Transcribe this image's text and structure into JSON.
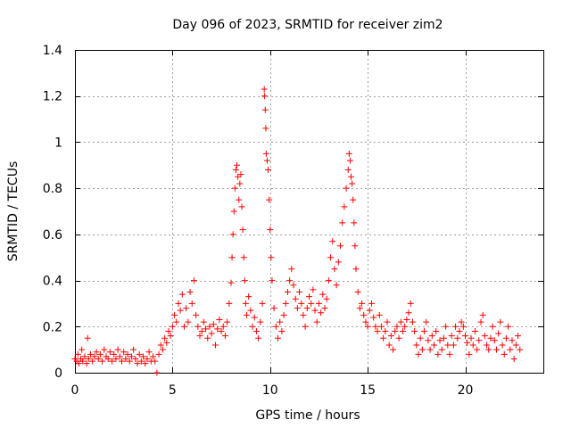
{
  "chart_data": {
    "type": "scatter",
    "title": "Day 096 of 2023, SRMTID for receiver zim2",
    "xlabel": "GPS time / hours",
    "ylabel": "SRMTID / TECUs",
    "xlim": [
      0,
      24
    ],
    "ylim": [
      0,
      1.4
    ],
    "xticks": [
      0,
      5,
      10,
      15,
      20
    ],
    "xtick_labels": [
      "0",
      "5",
      "10",
      "15",
      "20"
    ],
    "yticks": [
      0,
      0.2,
      0.4,
      0.6,
      0.8,
      1.0,
      1.2,
      1.4
    ],
    "ytick_labels": [
      "0",
      "0.2",
      "0.4",
      "0.6",
      "0.8",
      "1",
      "1.2",
      "1.4"
    ],
    "grid": true,
    "marker": "plus",
    "color": "#ff0000",
    "series": [
      {
        "name": "SRMTID",
        "points": [
          [
            0.0,
            0.06
          ],
          [
            0.1,
            0.05
          ],
          [
            0.15,
            0.08
          ],
          [
            0.2,
            0.04
          ],
          [
            0.3,
            0.06
          ],
          [
            0.35,
            0.1
          ],
          [
            0.4,
            0.05
          ],
          [
            0.5,
            0.07
          ],
          [
            0.6,
            0.04
          ],
          [
            0.65,
            0.15
          ],
          [
            0.7,
            0.06
          ],
          [
            0.8,
            0.08
          ],
          [
            0.9,
            0.05
          ],
          [
            1.0,
            0.07
          ],
          [
            1.1,
            0.09
          ],
          [
            1.2,
            0.06
          ],
          [
            1.3,
            0.08
          ],
          [
            1.4,
            0.05
          ],
          [
            1.5,
            0.1
          ],
          [
            1.6,
            0.07
          ],
          [
            1.7,
            0.06
          ],
          [
            1.8,
            0.09
          ],
          [
            1.9,
            0.05
          ],
          [
            2.0,
            0.08
          ],
          [
            2.1,
            0.06
          ],
          [
            2.2,
            0.1
          ],
          [
            2.3,
            0.07
          ],
          [
            2.4,
            0.05
          ],
          [
            2.5,
            0.09
          ],
          [
            2.6,
            0.06
          ],
          [
            2.7,
            0.08
          ],
          [
            2.8,
            0.05
          ],
          [
            2.9,
            0.07
          ],
          [
            3.0,
            0.1
          ],
          [
            3.1,
            0.06
          ],
          [
            3.2,
            0.04
          ],
          [
            3.3,
            0.08
          ],
          [
            3.4,
            0.05
          ],
          [
            3.5,
            0.07
          ],
          [
            3.6,
            0.04
          ],
          [
            3.7,
            0.06
          ],
          [
            3.8,
            0.09
          ],
          [
            3.9,
            0.05
          ],
          [
            4.0,
            0.07
          ],
          [
            4.1,
            0.05
          ],
          [
            4.2,
            0.0
          ],
          [
            4.3,
            0.08
          ],
          [
            4.4,
            0.12
          ],
          [
            4.5,
            0.1
          ],
          [
            4.6,
            0.15
          ],
          [
            4.7,
            0.13
          ],
          [
            4.8,
            0.18
          ],
          [
            4.9,
            0.16
          ],
          [
            5.0,
            0.2
          ],
          [
            5.1,
            0.25
          ],
          [
            5.2,
            0.22
          ],
          [
            5.3,
            0.3
          ],
          [
            5.4,
            0.27
          ],
          [
            5.5,
            0.34
          ],
          [
            5.6,
            0.2
          ],
          [
            5.7,
            0.28
          ],
          [
            5.8,
            0.22
          ],
          [
            5.9,
            0.35
          ],
          [
            6.0,
            0.3
          ],
          [
            6.1,
            0.4
          ],
          [
            6.2,
            0.25
          ],
          [
            6.3,
            0.2
          ],
          [
            6.4,
            0.16
          ],
          [
            6.5,
            0.18
          ],
          [
            6.6,
            0.22
          ],
          [
            6.7,
            0.19
          ],
          [
            6.8,
            0.15
          ],
          [
            6.9,
            0.2
          ],
          [
            7.0,
            0.17
          ],
          [
            7.1,
            0.21
          ],
          [
            7.2,
            0.12
          ],
          [
            7.3,
            0.19
          ],
          [
            7.4,
            0.23
          ],
          [
            7.5,
            0.18
          ],
          [
            7.6,
            0.2
          ],
          [
            7.7,
            0.16
          ],
          [
            7.8,
            0.22
          ],
          [
            7.9,
            0.3
          ],
          [
            8.0,
            0.39
          ],
          [
            8.05,
            0.5
          ],
          [
            8.1,
            0.6
          ],
          [
            8.15,
            0.7
          ],
          [
            8.2,
            0.8
          ],
          [
            8.25,
            0.88
          ],
          [
            8.3,
            0.9
          ],
          [
            8.35,
            0.85
          ],
          [
            8.4,
            0.75
          ],
          [
            8.45,
            0.82
          ],
          [
            8.5,
            0.86
          ],
          [
            8.55,
            0.72
          ],
          [
            8.6,
            0.62
          ],
          [
            8.65,
            0.5
          ],
          [
            8.7,
            0.4
          ],
          [
            8.75,
            0.3
          ],
          [
            8.8,
            0.25
          ],
          [
            8.9,
            0.33
          ],
          [
            9.0,
            0.27
          ],
          [
            9.1,
            0.2
          ],
          [
            9.2,
            0.24
          ],
          [
            9.3,
            0.18
          ],
          [
            9.4,
            0.15
          ],
          [
            9.5,
            0.22
          ],
          [
            9.6,
            0.3
          ],
          [
            9.7,
            1.23
          ],
          [
            9.72,
            1.2
          ],
          [
            9.75,
            1.14
          ],
          [
            9.78,
            1.06
          ],
          [
            9.8,
            0.95
          ],
          [
            9.85,
            0.92
          ],
          [
            9.9,
            0.88
          ],
          [
            9.95,
            0.75
          ],
          [
            10.0,
            0.62
          ],
          [
            10.05,
            0.5
          ],
          [
            10.1,
            0.4
          ],
          [
            10.2,
            0.28
          ],
          [
            10.3,
            0.2
          ],
          [
            10.4,
            0.15
          ],
          [
            10.5,
            0.22
          ],
          [
            10.6,
            0.18
          ],
          [
            10.7,
            0.25
          ],
          [
            10.8,
            0.3
          ],
          [
            10.9,
            0.35
          ],
          [
            11.0,
            0.4
          ],
          [
            11.1,
            0.45
          ],
          [
            11.2,
            0.38
          ],
          [
            11.3,
            0.32
          ],
          [
            11.4,
            0.28
          ],
          [
            11.5,
            0.35
          ],
          [
            11.6,
            0.3
          ],
          [
            11.7,
            0.25
          ],
          [
            11.8,
            0.2
          ],
          [
            11.9,
            0.28
          ],
          [
            12.0,
            0.33
          ],
          [
            12.1,
            0.3
          ],
          [
            12.2,
            0.36
          ],
          [
            12.3,
            0.27
          ],
          [
            12.4,
            0.22
          ],
          [
            12.5,
            0.3
          ],
          [
            12.6,
            0.26
          ],
          [
            12.7,
            0.34
          ],
          [
            12.8,
            0.28
          ],
          [
            12.9,
            0.32
          ],
          [
            13.0,
            0.4
          ],
          [
            13.1,
            0.5
          ],
          [
            13.2,
            0.57
          ],
          [
            13.3,
            0.45
          ],
          [
            13.4,
            0.38
          ],
          [
            13.5,
            0.48
          ],
          [
            13.6,
            0.55
          ],
          [
            13.7,
            0.65
          ],
          [
            13.8,
            0.72
          ],
          [
            13.9,
            0.8
          ],
          [
            14.0,
            0.88
          ],
          [
            14.05,
            0.95
          ],
          [
            14.1,
            0.92
          ],
          [
            14.15,
            0.85
          ],
          [
            14.2,
            0.82
          ],
          [
            14.25,
            0.75
          ],
          [
            14.3,
            0.65
          ],
          [
            14.35,
            0.55
          ],
          [
            14.4,
            0.45
          ],
          [
            14.5,
            0.35
          ],
          [
            14.6,
            0.28
          ],
          [
            14.7,
            0.3
          ],
          [
            14.8,
            0.25
          ],
          [
            14.9,
            0.22
          ],
          [
            15.0,
            0.2
          ],
          [
            15.1,
            0.27
          ],
          [
            15.2,
            0.3
          ],
          [
            15.3,
            0.24
          ],
          [
            15.4,
            0.2
          ],
          [
            15.5,
            0.18
          ],
          [
            15.6,
            0.25
          ],
          [
            15.7,
            0.2
          ],
          [
            15.8,
            0.15
          ],
          [
            15.9,
            0.18
          ],
          [
            16.0,
            0.22
          ],
          [
            16.1,
            0.12
          ],
          [
            16.2,
            0.16
          ],
          [
            16.3,
            0.1
          ],
          [
            16.4,
            0.18
          ],
          [
            16.5,
            0.2
          ],
          [
            16.6,
            0.15
          ],
          [
            16.7,
            0.22
          ],
          [
            16.8,
            0.18
          ],
          [
            16.9,
            0.2
          ],
          [
            17.0,
            0.23
          ],
          [
            17.1,
            0.26
          ],
          [
            17.2,
            0.3
          ],
          [
            17.3,
            0.22
          ],
          [
            17.4,
            0.18
          ],
          [
            17.5,
            0.12
          ],
          [
            17.6,
            0.08
          ],
          [
            17.7,
            0.15
          ],
          [
            17.8,
            0.1
          ],
          [
            17.9,
            0.18
          ],
          [
            18.0,
            0.22
          ],
          [
            18.1,
            0.14
          ],
          [
            18.2,
            0.1
          ],
          [
            18.3,
            0.16
          ],
          [
            18.4,
            0.12
          ],
          [
            18.5,
            0.18
          ],
          [
            18.6,
            0.08
          ],
          [
            18.7,
            0.14
          ],
          [
            18.8,
            0.1
          ],
          [
            18.9,
            0.15
          ],
          [
            19.0,
            0.2
          ],
          [
            19.1,
            0.12
          ],
          [
            19.2,
            0.08
          ],
          [
            19.3,
            0.16
          ],
          [
            19.4,
            0.12
          ],
          [
            19.5,
            0.2
          ],
          [
            19.6,
            0.15
          ],
          [
            19.7,
            0.18
          ],
          [
            19.8,
            0.22
          ],
          [
            19.9,
            0.2
          ],
          [
            20.0,
            0.16
          ],
          [
            20.1,
            0.13
          ],
          [
            20.2,
            0.08
          ],
          [
            20.3,
            0.15
          ],
          [
            20.4,
            0.12
          ],
          [
            20.5,
            0.18
          ],
          [
            20.6,
            0.1
          ],
          [
            20.7,
            0.14
          ],
          [
            20.8,
            0.22
          ],
          [
            20.9,
            0.25
          ],
          [
            21.0,
            0.16
          ],
          [
            21.1,
            0.12
          ],
          [
            21.2,
            0.1
          ],
          [
            21.3,
            0.15
          ],
          [
            21.4,
            0.2
          ],
          [
            21.5,
            0.14
          ],
          [
            21.6,
            0.1
          ],
          [
            21.7,
            0.17
          ],
          [
            21.8,
            0.22
          ],
          [
            21.9,
            0.12
          ],
          [
            22.0,
            0.08
          ],
          [
            22.1,
            0.15
          ],
          [
            22.2,
            0.2
          ],
          [
            22.3,
            0.1
          ],
          [
            22.4,
            0.14
          ],
          [
            22.5,
            0.06
          ],
          [
            22.6,
            0.12
          ],
          [
            22.7,
            0.16
          ],
          [
            22.8,
            0.1
          ]
        ]
      }
    ]
  }
}
